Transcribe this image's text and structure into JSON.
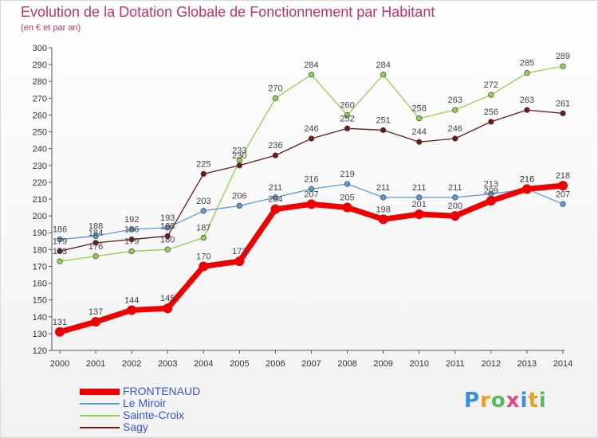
{
  "title": "Evolution de la Dotation Globale de Fonctionnement par Habitant",
  "subtitle": "(en € et par an)",
  "logo_text": "Proxiti",
  "chart_data": {
    "type": "line",
    "title": "Evolution de la Dotation Globale de Fonctionnement par Habitant",
    "subtitle": "(en € et par an)",
    "xlabel": "",
    "ylabel": "",
    "categories": [
      "2000",
      "2001",
      "2002",
      "2003",
      "2004",
      "2005",
      "2006",
      "2007",
      "2008",
      "2009",
      "2010",
      "2011",
      "2012",
      "2013",
      "2014"
    ],
    "ylim": [
      120,
      300
    ],
    "yticks": [
      120,
      130,
      140,
      150,
      160,
      170,
      180,
      190,
      200,
      210,
      220,
      230,
      240,
      250,
      260,
      270,
      280,
      290,
      300
    ],
    "grid": false,
    "legend_position": "bottom-left",
    "series": [
      {
        "name": "Sainte-Croix",
        "color": "#8fd14f",
        "values": [
          173,
          176,
          179,
          180,
          187,
          233,
          270,
          284,
          260,
          284,
          258,
          263,
          272,
          285,
          289
        ]
      },
      {
        "name": "Le Miroir",
        "color": "#5b9bd5",
        "values": [
          186,
          188,
          192,
          193,
          203,
          206,
          211,
          216,
          219,
          211,
          211,
          211,
          213,
          216,
          207
        ]
      },
      {
        "name": "Sagy",
        "color": "#6b1a1a",
        "values": [
          179,
          184,
          186,
          188,
          225,
          230,
          236,
          246,
          252,
          251,
          244,
          246,
          256,
          263,
          261
        ]
      },
      {
        "name": "FRONTENAUD",
        "color": "#ee0000",
        "values": [
          131,
          137,
          144,
          145,
          170,
          173,
          204,
          207,
          205,
          198,
          201,
          200,
          209,
          216,
          218
        ]
      }
    ]
  }
}
